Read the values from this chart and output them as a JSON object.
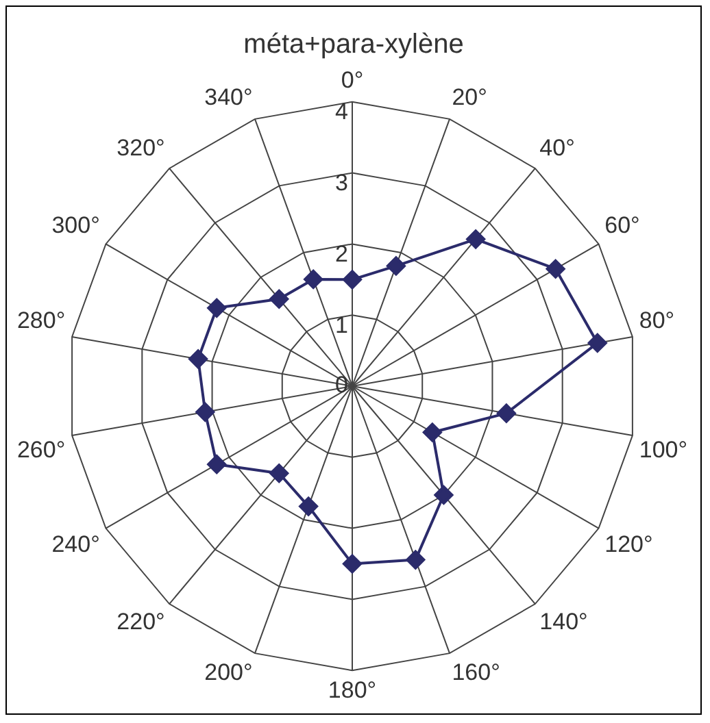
{
  "chart_data": {
    "type": "radar",
    "title": "méta+para-xylène",
    "categories": [
      "0°",
      "20°",
      "40°",
      "60°",
      "80°",
      "100°",
      "120°",
      "140°",
      "160°",
      "180°",
      "200°",
      "220°",
      "240°",
      "260°",
      "280°",
      "300°",
      "320°",
      "340°"
    ],
    "series": [
      {
        "color": "#2b2b6b",
        "values": [
          1.5,
          1.8,
          2.7,
          3.3,
          3.5,
          2.2,
          1.3,
          2.0,
          2.6,
          2.5,
          1.8,
          1.6,
          2.2,
          2.1,
          2.2,
          2.2,
          1.6,
          1.6
        ]
      }
    ],
    "ylim": [
      0,
      4
    ],
    "yticks": [
      0,
      1,
      2,
      3,
      4
    ],
    "grid": true,
    "marker": "diamond",
    "legend": false
  }
}
